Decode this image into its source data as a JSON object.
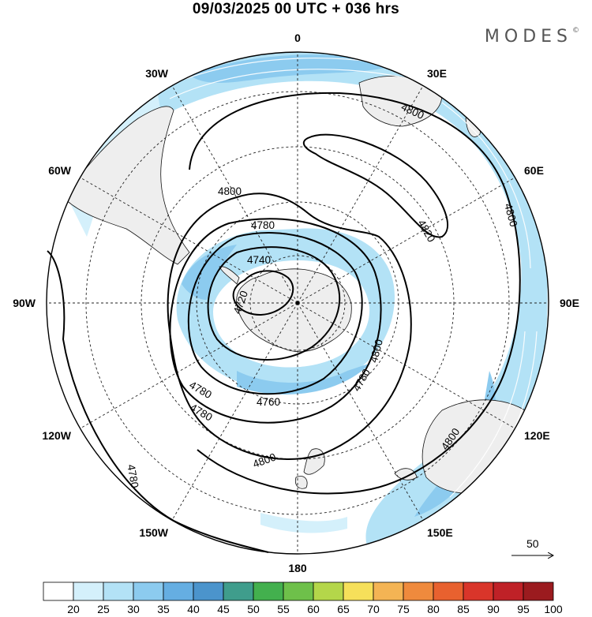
{
  "header": {
    "title": "09/03/2025  00 UTC  + 036 hrs",
    "brand": "MODES",
    "brand_mark": "©"
  },
  "map": {
    "projection": "south-polar-stereographic",
    "lon_labels": [
      {
        "text": "0",
        "lon": 0
      },
      {
        "text": "30E",
        "lon": 30
      },
      {
        "text": "60E",
        "lon": 60
      },
      {
        "text": "90E",
        "lon": 90
      },
      {
        "text": "120E",
        "lon": 120
      },
      {
        "text": "150E",
        "lon": 150
      },
      {
        "text": "180",
        "lon": 180
      },
      {
        "text": "150W",
        "lon": -150
      },
      {
        "text": "120W",
        "lon": -120
      },
      {
        "text": "90W",
        "lon": -90
      },
      {
        "text": "60W",
        "lon": -60
      },
      {
        "text": "30W",
        "lon": -30
      }
    ],
    "contour_labels": [
      "4720",
      "4740",
      "4760",
      "4780",
      "4800",
      "4820"
    ],
    "contour_label_instances": [
      {
        "text": "4800",
        "label": "4800"
      },
      {
        "text": "4820",
        "label": "4820"
      },
      {
        "text": "4800",
        "label": "4800"
      },
      {
        "text": "4800",
        "label": "4800"
      },
      {
        "text": "4780",
        "label": "4780"
      },
      {
        "text": "4740",
        "label": "4740"
      },
      {
        "text": "4720",
        "label": "4720"
      },
      {
        "text": "4800",
        "label": "4800"
      },
      {
        "text": "4780",
        "label": "4780"
      },
      {
        "text": "4780",
        "label": "4780"
      },
      {
        "text": "4760",
        "label": "4760"
      },
      {
        "text": "4780",
        "label": "4780"
      },
      {
        "text": "4800",
        "label": "4800"
      },
      {
        "text": "4780",
        "label": "4780"
      },
      {
        "text": "4800",
        "label": "4800"
      }
    ],
    "wind_reference": {
      "label": "50",
      "units_note": ""
    }
  },
  "colorbar": {
    "labels": [
      "20",
      "25",
      "30",
      "35",
      "40",
      "45",
      "50",
      "55",
      "60",
      "65",
      "70",
      "75",
      "80",
      "85",
      "90",
      "95",
      "100"
    ],
    "colors": [
      "#ffffff",
      "#d4f0fb",
      "#b3e2f6",
      "#8ccbef",
      "#65aee2",
      "#4b94cc",
      "#3f9d8c",
      "#43b04e",
      "#6ec04a",
      "#b4d64a",
      "#f6e05a",
      "#f4b454",
      "#ef8a3d",
      "#e8612f",
      "#d9352a",
      "#bf2127",
      "#9b1b1f"
    ]
  }
}
